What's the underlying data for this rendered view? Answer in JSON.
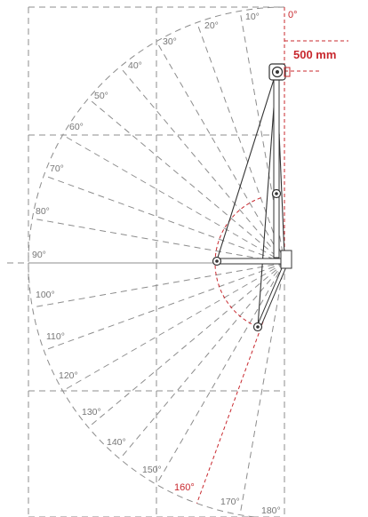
{
  "diagram": {
    "angle_labels": [
      "0°",
      "10°",
      "20°",
      "30°",
      "40°",
      "50°",
      "60°",
      "70°",
      "80°",
      "90°",
      "100°",
      "110°",
      "120°",
      "130°",
      "140°",
      "150°",
      "160°",
      "170°",
      "180°"
    ],
    "highlight_angle": "160°",
    "start_angle": "0°",
    "offset_label": "500 mm",
    "colors": {
      "accent": "#c8282e",
      "dashed_lines": "#8c8c8c",
      "text": "#777777",
      "arm": "#333333"
    },
    "icons": {
      "pivot": "pivot-joint-icon",
      "head": "lamp-head-icon"
    }
  }
}
